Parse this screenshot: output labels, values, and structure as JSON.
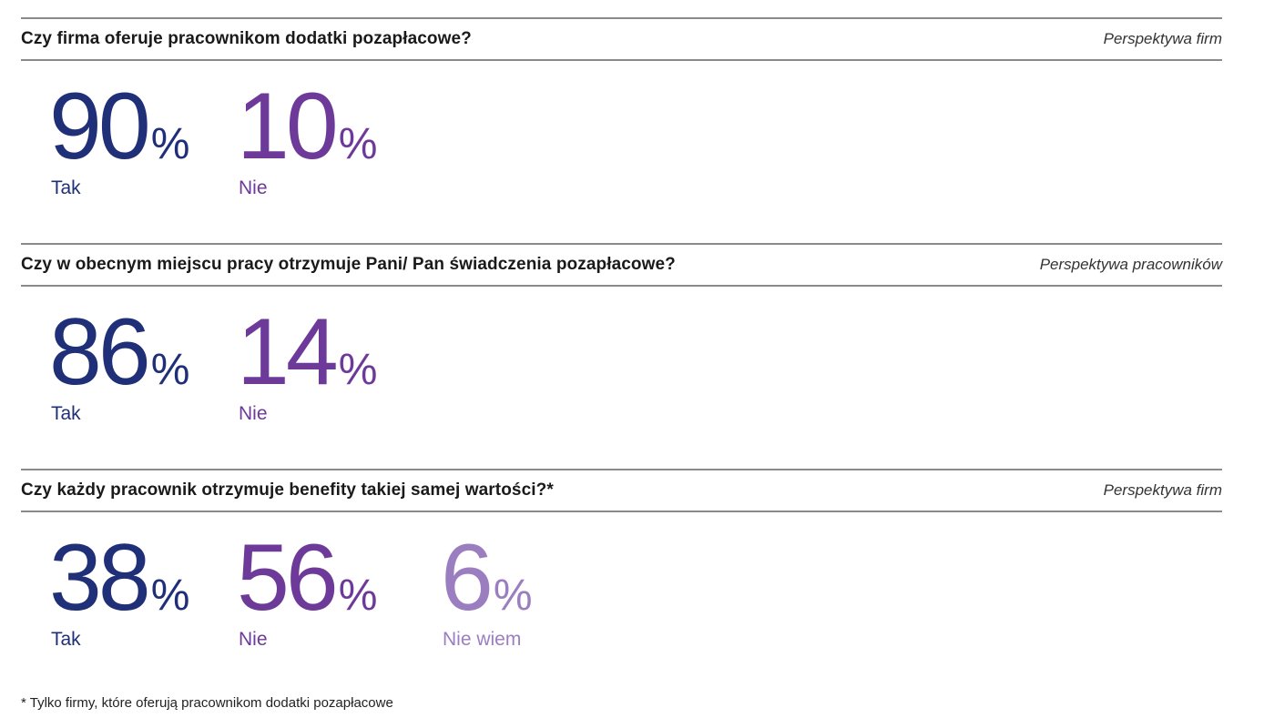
{
  "colors": {
    "tak": "#1f2f78",
    "nie": "#6e3a9a",
    "nie_wiem": "#9b7ec0"
  },
  "chart_data": [
    {
      "type": "table",
      "title": "Czy firma oferuje pracownikom dodatki pozapłacowe?",
      "subtitle": "Perspektywa firm",
      "categories": [
        "Tak",
        "Nie"
      ],
      "values": [
        90,
        10
      ],
      "unit": "%"
    },
    {
      "type": "table",
      "title": "Czy w obecnym miejscu pracy otrzymuje Pani/ Pan świadczenia pozapłacowe?",
      "subtitle": "Perspektywa pracowników",
      "categories": [
        "Tak",
        "Nie"
      ],
      "values": [
        86,
        14
      ],
      "unit": "%"
    },
    {
      "type": "table",
      "title": "Czy każdy pracownik otrzymuje benefity takiej samej wartości?*",
      "subtitle": "Perspektywa firm",
      "categories": [
        "Tak",
        "Nie",
        "Nie wiem"
      ],
      "values": [
        38,
        56,
        6
      ],
      "unit": "%"
    }
  ],
  "footnote": "* Tylko firmy, które oferują pracownikom dodatki pozapłacowe"
}
